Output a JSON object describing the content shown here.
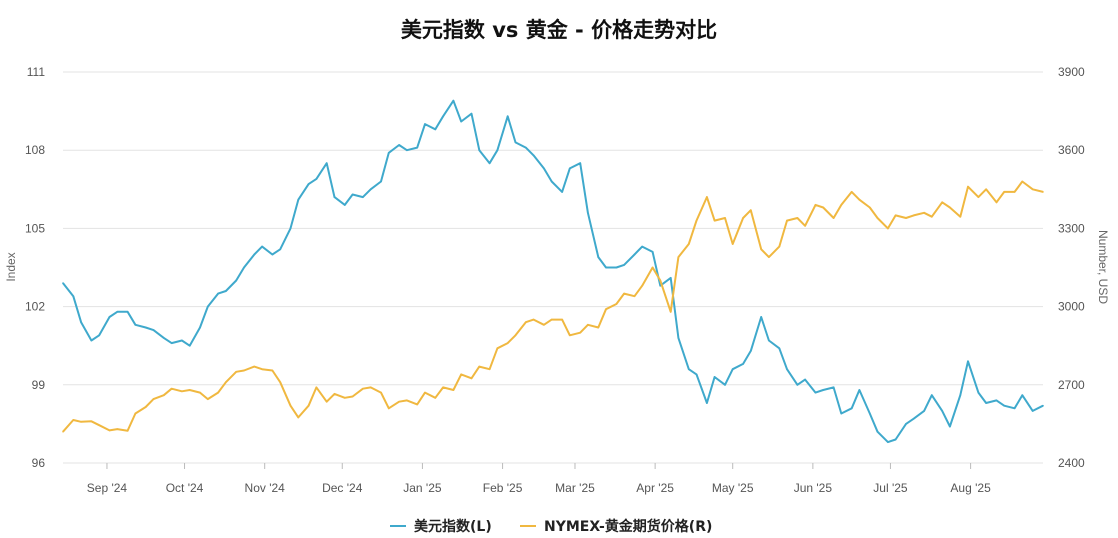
{
  "chart_data": {
    "type": "line",
    "title": "美元指数 vs 黄金 - 价格走势对比",
    "left_axis": {
      "label": "Index",
      "range": [
        96,
        111
      ],
      "ticks": [
        "96",
        "99",
        "102",
        "105",
        "108",
        "111"
      ]
    },
    "right_axis": {
      "label": "Number, USD",
      "range": [
        2400,
        3900
      ],
      "ticks": [
        "2400",
        "2700",
        "3000",
        "3300",
        "3600",
        "3900"
      ]
    },
    "x_range": [
      "2024-08-15",
      "2025-08-29"
    ],
    "x_ticks": [
      {
        "label": "Sep '24",
        "date": "2024-09-01"
      },
      {
        "label": "Oct '24",
        "date": "2024-10-01"
      },
      {
        "label": "Nov '24",
        "date": "2024-11-01"
      },
      {
        "label": "Dec '24",
        "date": "2024-12-01"
      },
      {
        "label": "Jan '25",
        "date": "2025-01-01"
      },
      {
        "label": "Feb '25",
        "date": "2025-02-01"
      },
      {
        "label": "Mar '25",
        "date": "2025-03-01"
      },
      {
        "label": "Apr '25",
        "date": "2025-04-01"
      },
      {
        "label": "May '25",
        "date": "2025-05-01"
      },
      {
        "label": "Jun '25",
        "date": "2025-06-01"
      },
      {
        "label": "Jul '25",
        "date": "2025-07-01"
      },
      {
        "label": "Aug '25",
        "date": "2025-08-01"
      }
    ],
    "grid": true,
    "legend_position": "bottom",
    "series": [
      {
        "name": "美元指数(L)",
        "axis": "left",
        "color": "#3fa9cc",
        "points": [
          [
            "2024-08-15",
            102.9
          ],
          [
            "2024-08-19",
            102.4
          ],
          [
            "2024-08-22",
            101.4
          ],
          [
            "2024-08-26",
            100.7
          ],
          [
            "2024-08-29",
            100.9
          ],
          [
            "2024-09-02",
            101.6
          ],
          [
            "2024-09-05",
            101.8
          ],
          [
            "2024-09-09",
            101.8
          ],
          [
            "2024-09-12",
            101.3
          ],
          [
            "2024-09-16",
            101.2
          ],
          [
            "2024-09-19",
            101.1
          ],
          [
            "2024-09-23",
            100.8
          ],
          [
            "2024-09-26",
            100.6
          ],
          [
            "2024-09-30",
            100.7
          ],
          [
            "2024-10-03",
            100.5
          ],
          [
            "2024-10-07",
            101.2
          ],
          [
            "2024-10-10",
            102.0
          ],
          [
            "2024-10-14",
            102.5
          ],
          [
            "2024-10-17",
            102.6
          ],
          [
            "2024-10-21",
            103.0
          ],
          [
            "2024-10-24",
            103.5
          ],
          [
            "2024-10-28",
            104.0
          ],
          [
            "2024-10-31",
            104.3
          ],
          [
            "2024-11-04",
            104.0
          ],
          [
            "2024-11-07",
            104.2
          ],
          [
            "2024-11-11",
            105.0
          ],
          [
            "2024-11-14",
            106.1
          ],
          [
            "2024-11-18",
            106.7
          ],
          [
            "2024-11-21",
            106.9
          ],
          [
            "2024-11-25",
            107.5
          ],
          [
            "2024-11-28",
            106.2
          ],
          [
            "2024-12-02",
            105.9
          ],
          [
            "2024-12-05",
            106.3
          ],
          [
            "2024-12-09",
            106.2
          ],
          [
            "2024-12-12",
            106.5
          ],
          [
            "2024-12-16",
            106.8
          ],
          [
            "2024-12-19",
            107.9
          ],
          [
            "2024-12-23",
            108.2
          ],
          [
            "2024-12-26",
            108.0
          ],
          [
            "2024-12-30",
            108.1
          ],
          [
            "2025-01-02",
            109.0
          ],
          [
            "2025-01-06",
            108.8
          ],
          [
            "2025-01-09",
            109.3
          ],
          [
            "2025-01-13",
            109.9
          ],
          [
            "2025-01-16",
            109.1
          ],
          [
            "2025-01-20",
            109.4
          ],
          [
            "2025-01-23",
            108.0
          ],
          [
            "2025-01-27",
            107.5
          ],
          [
            "2025-01-30",
            108.0
          ],
          [
            "2025-02-03",
            109.3
          ],
          [
            "2025-02-06",
            108.3
          ],
          [
            "2025-02-10",
            108.1
          ],
          [
            "2025-02-13",
            107.8
          ],
          [
            "2025-02-17",
            107.3
          ],
          [
            "2025-02-20",
            106.8
          ],
          [
            "2025-02-24",
            106.4
          ],
          [
            "2025-02-27",
            107.3
          ],
          [
            "2025-03-03",
            107.5
          ],
          [
            "2025-03-06",
            105.6
          ],
          [
            "2025-03-10",
            103.9
          ],
          [
            "2025-03-13",
            103.5
          ],
          [
            "2025-03-17",
            103.5
          ],
          [
            "2025-03-20",
            103.6
          ],
          [
            "2025-03-24",
            104.0
          ],
          [
            "2025-03-27",
            104.3
          ],
          [
            "2025-03-31",
            104.1
          ],
          [
            "2025-04-03",
            102.8
          ],
          [
            "2025-04-07",
            103.1
          ],
          [
            "2025-04-10",
            100.8
          ],
          [
            "2025-04-14",
            99.6
          ],
          [
            "2025-04-17",
            99.4
          ],
          [
            "2025-04-21",
            98.3
          ],
          [
            "2025-04-24",
            99.3
          ],
          [
            "2025-04-28",
            99.0
          ],
          [
            "2025-05-01",
            99.6
          ],
          [
            "2025-05-05",
            99.8
          ],
          [
            "2025-05-08",
            100.3
          ],
          [
            "2025-05-12",
            101.6
          ],
          [
            "2025-05-15",
            100.7
          ],
          [
            "2025-05-19",
            100.4
          ],
          [
            "2025-05-22",
            99.6
          ],
          [
            "2025-05-26",
            99.0
          ],
          [
            "2025-05-29",
            99.2
          ],
          [
            "2025-06-02",
            98.7
          ],
          [
            "2025-06-05",
            98.8
          ],
          [
            "2025-06-09",
            98.9
          ],
          [
            "2025-06-12",
            97.9
          ],
          [
            "2025-06-16",
            98.1
          ],
          [
            "2025-06-19",
            98.8
          ],
          [
            "2025-06-23",
            97.9
          ],
          [
            "2025-06-26",
            97.2
          ],
          [
            "2025-06-30",
            96.8
          ],
          [
            "2025-07-03",
            96.9
          ],
          [
            "2025-07-07",
            97.5
          ],
          [
            "2025-07-10",
            97.7
          ],
          [
            "2025-07-14",
            98.0
          ],
          [
            "2025-07-17",
            98.6
          ],
          [
            "2025-07-21",
            98.0
          ],
          [
            "2025-07-24",
            97.4
          ],
          [
            "2025-07-28",
            98.6
          ],
          [
            "2025-07-31",
            99.9
          ],
          [
            "2025-08-04",
            98.7
          ],
          [
            "2025-08-07",
            98.3
          ],
          [
            "2025-08-11",
            98.4
          ],
          [
            "2025-08-14",
            98.2
          ],
          [
            "2025-08-18",
            98.1
          ],
          [
            "2025-08-21",
            98.6
          ],
          [
            "2025-08-25",
            98.0
          ],
          [
            "2025-08-29",
            98.2
          ]
        ]
      },
      {
        "name": "NYMEX-黄金期货价格(R)",
        "axis": "right",
        "color": "#f0b840",
        "points": [
          [
            "2024-08-15",
            2520
          ],
          [
            "2024-08-19",
            2565
          ],
          [
            "2024-08-22",
            2558
          ],
          [
            "2024-08-26",
            2560
          ],
          [
            "2024-08-29",
            2545
          ],
          [
            "2024-09-02",
            2525
          ],
          [
            "2024-09-05",
            2530
          ],
          [
            "2024-09-09",
            2524
          ],
          [
            "2024-09-12",
            2590
          ],
          [
            "2024-09-16",
            2615
          ],
          [
            "2024-09-19",
            2645
          ],
          [
            "2024-09-23",
            2660
          ],
          [
            "2024-09-26",
            2685
          ],
          [
            "2024-09-30",
            2675
          ],
          [
            "2024-10-03",
            2680
          ],
          [
            "2024-10-07",
            2670
          ],
          [
            "2024-10-10",
            2645
          ],
          [
            "2024-10-14",
            2670
          ],
          [
            "2024-10-17",
            2710
          ],
          [
            "2024-10-21",
            2750
          ],
          [
            "2024-10-24",
            2755
          ],
          [
            "2024-10-28",
            2770
          ],
          [
            "2024-10-31",
            2760
          ],
          [
            "2024-11-04",
            2755
          ],
          [
            "2024-11-07",
            2710
          ],
          [
            "2024-11-11",
            2620
          ],
          [
            "2024-11-14",
            2575
          ],
          [
            "2024-11-18",
            2620
          ],
          [
            "2024-11-21",
            2690
          ],
          [
            "2024-11-25",
            2635
          ],
          [
            "2024-11-28",
            2665
          ],
          [
            "2024-12-02",
            2650
          ],
          [
            "2024-12-05",
            2655
          ],
          [
            "2024-12-09",
            2685
          ],
          [
            "2024-12-12",
            2690
          ],
          [
            "2024-12-16",
            2670
          ],
          [
            "2024-12-19",
            2610
          ],
          [
            "2024-12-23",
            2635
          ],
          [
            "2024-12-26",
            2640
          ],
          [
            "2024-12-30",
            2625
          ],
          [
            "2025-01-02",
            2670
          ],
          [
            "2025-01-06",
            2650
          ],
          [
            "2025-01-09",
            2690
          ],
          [
            "2025-01-13",
            2680
          ],
          [
            "2025-01-16",
            2740
          ],
          [
            "2025-01-20",
            2725
          ],
          [
            "2025-01-23",
            2770
          ],
          [
            "2025-01-27",
            2760
          ],
          [
            "2025-01-30",
            2840
          ],
          [
            "2025-02-03",
            2860
          ],
          [
            "2025-02-06",
            2890
          ],
          [
            "2025-02-10",
            2940
          ],
          [
            "2025-02-13",
            2950
          ],
          [
            "2025-02-17",
            2930
          ],
          [
            "2025-02-20",
            2950
          ],
          [
            "2025-02-24",
            2950
          ],
          [
            "2025-02-27",
            2890
          ],
          [
            "2025-03-03",
            2900
          ],
          [
            "2025-03-06",
            2930
          ],
          [
            "2025-03-10",
            2920
          ],
          [
            "2025-03-13",
            2990
          ],
          [
            "2025-03-17",
            3010
          ],
          [
            "2025-03-20",
            3050
          ],
          [
            "2025-03-24",
            3040
          ],
          [
            "2025-03-27",
            3080
          ],
          [
            "2025-03-31",
            3150
          ],
          [
            "2025-04-03",
            3100
          ],
          [
            "2025-04-07",
            2980
          ],
          [
            "2025-04-10",
            3190
          ],
          [
            "2025-04-14",
            3240
          ],
          [
            "2025-04-17",
            3330
          ],
          [
            "2025-04-21",
            3420
          ],
          [
            "2025-04-24",
            3330
          ],
          [
            "2025-04-28",
            3340
          ],
          [
            "2025-05-01",
            3240
          ],
          [
            "2025-05-05",
            3340
          ],
          [
            "2025-05-08",
            3370
          ],
          [
            "2025-05-12",
            3220
          ],
          [
            "2025-05-15",
            3190
          ],
          [
            "2025-05-19",
            3230
          ],
          [
            "2025-05-22",
            3330
          ],
          [
            "2025-05-26",
            3340
          ],
          [
            "2025-05-29",
            3310
          ],
          [
            "2025-06-02",
            3390
          ],
          [
            "2025-06-05",
            3380
          ],
          [
            "2025-06-09",
            3340
          ],
          [
            "2025-06-12",
            3390
          ],
          [
            "2025-06-16",
            3440
          ],
          [
            "2025-06-19",
            3410
          ],
          [
            "2025-06-23",
            3380
          ],
          [
            "2025-06-26",
            3340
          ],
          [
            "2025-06-30",
            3300
          ],
          [
            "2025-07-03",
            3350
          ],
          [
            "2025-07-07",
            3340
          ],
          [
            "2025-07-10",
            3350
          ],
          [
            "2025-07-14",
            3360
          ],
          [
            "2025-07-17",
            3345
          ],
          [
            "2025-07-21",
            3400
          ],
          [
            "2025-07-24",
            3380
          ],
          [
            "2025-07-28",
            3345
          ],
          [
            "2025-07-31",
            3460
          ],
          [
            "2025-08-04",
            3420
          ],
          [
            "2025-08-07",
            3450
          ],
          [
            "2025-08-11",
            3400
          ],
          [
            "2025-08-14",
            3440
          ],
          [
            "2025-08-18",
            3440
          ],
          [
            "2025-08-21",
            3480
          ],
          [
            "2025-08-25",
            3450
          ],
          [
            "2025-08-29",
            3440
          ]
        ]
      }
    ]
  }
}
